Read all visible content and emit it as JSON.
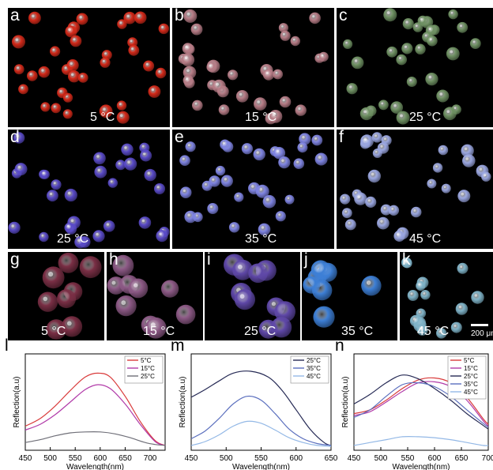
{
  "figure": {
    "photo_rows": [
      {
        "panels": [
          {
            "label": "a",
            "temp": "5 °C",
            "color": "#d42a1a"
          },
          {
            "label": "b",
            "temp": "15 °C",
            "color": "#b67c86"
          },
          {
            "label": "c",
            "temp": "25 °C",
            "color": "#6f9163"
          }
        ]
      },
      {
        "panels": [
          {
            "label": "d",
            "temp": "25 °C",
            "color": "#5a4bc8"
          },
          {
            "label": "e",
            "temp": "35 °C",
            "color": "#7f84e2"
          },
          {
            "label": "f",
            "temp": "45 °C",
            "color": "#9aa6e0"
          }
        ]
      },
      {
        "panels": [
          {
            "label": "g",
            "temp": "5 °C",
            "color": "#7a2f45"
          },
          {
            "label": "h",
            "temp": "15 °C",
            "color": "#8d5a86"
          },
          {
            "label": "i",
            "temp": "25 °C",
            "color": "#5f48a8"
          },
          {
            "label": "j",
            "temp": "35 °C",
            "color": "#3d7fd6"
          },
          {
            "label": "k",
            "temp": "45 °C",
            "color": "#7fb3c8"
          }
        ]
      }
    ],
    "scale_bar": "200 μm"
  },
  "chart_data": [
    {
      "panel_label": "l",
      "type": "line",
      "xlabel": "Wavelength(nm)",
      "ylabel": "Reflection(a.u)",
      "xlim": [
        450,
        730
      ],
      "xticks": [
        450,
        500,
        550,
        600,
        650,
        700
      ],
      "legend": "top-right",
      "series": [
        {
          "name": "5°C",
          "color": "#d93b3b",
          "x": [
            450,
            480,
            510,
            540,
            570,
            595,
            620,
            650,
            680,
            710,
            730
          ],
          "y": [
            0.25,
            0.33,
            0.46,
            0.62,
            0.76,
            0.8,
            0.76,
            0.56,
            0.3,
            0.1,
            0.05
          ]
        },
        {
          "name": "15°C",
          "color": "#b13aa8",
          "x": [
            450,
            480,
            510,
            540,
            570,
            595,
            620,
            650,
            680,
            710,
            730
          ],
          "y": [
            0.21,
            0.27,
            0.37,
            0.5,
            0.63,
            0.68,
            0.64,
            0.48,
            0.27,
            0.09,
            0.05
          ]
        },
        {
          "name": "25°C",
          "color": "#6f6f78",
          "x": [
            450,
            480,
            510,
            540,
            570,
            600,
            630,
            660,
            690,
            710,
            730
          ],
          "y": [
            0.08,
            0.11,
            0.15,
            0.18,
            0.19,
            0.19,
            0.17,
            0.13,
            0.08,
            0.06,
            0.05
          ]
        }
      ]
    },
    {
      "panel_label": "m",
      "type": "line",
      "xlabel": "Wavelength(nm)",
      "ylabel": "Reflection(a.u)",
      "xlim": [
        450,
        650
      ],
      "xticks": [
        450,
        500,
        550,
        600,
        650
      ],
      "legend": "top-right",
      "series": [
        {
          "name": "25°C",
          "color": "#262a55",
          "x": [
            450,
            470,
            490,
            510,
            535,
            560,
            580,
            600,
            620,
            640,
            650
          ],
          "y": [
            0.55,
            0.63,
            0.72,
            0.8,
            0.82,
            0.76,
            0.62,
            0.42,
            0.22,
            0.08,
            0.05
          ]
        },
        {
          "name": "35°C",
          "color": "#5b6fbe",
          "x": [
            450,
            470,
            490,
            510,
            530,
            550,
            570,
            590,
            610,
            630,
            650
          ],
          "y": [
            0.12,
            0.2,
            0.33,
            0.48,
            0.56,
            0.52,
            0.38,
            0.22,
            0.12,
            0.07,
            0.05
          ]
        },
        {
          "name": "45°C",
          "color": "#93b8e6",
          "x": [
            450,
            470,
            490,
            510,
            530,
            550,
            570,
            590,
            610,
            630,
            650
          ],
          "y": [
            0.05,
            0.09,
            0.16,
            0.25,
            0.3,
            0.28,
            0.21,
            0.13,
            0.08,
            0.05,
            0.04
          ]
        }
      ]
    },
    {
      "panel_label": "n",
      "type": "line",
      "xlabel": "Wavelength(nm)",
      "ylabel": "Reflection(a.u)",
      "xlim": [
        450,
        700
      ],
      "xticks": [
        450,
        500,
        550,
        600,
        650,
        700
      ],
      "legend": "top-right",
      "series": [
        {
          "name": "5°C",
          "color": "#d93b3b",
          "x": [
            450,
            480,
            510,
            540,
            570,
            600,
            630,
            660,
            690,
            700
          ],
          "y": [
            0.38,
            0.42,
            0.52,
            0.64,
            0.73,
            0.75,
            0.7,
            0.55,
            0.33,
            0.27
          ]
        },
        {
          "name": "15°C",
          "color": "#b13aa8",
          "x": [
            450,
            480,
            510,
            540,
            570,
            600,
            630,
            660,
            690,
            700
          ],
          "y": [
            0.36,
            0.4,
            0.5,
            0.61,
            0.7,
            0.71,
            0.66,
            0.52,
            0.31,
            0.25
          ]
        },
        {
          "name": "25°C",
          "color": "#262a55",
          "x": [
            450,
            480,
            510,
            540,
            570,
            600,
            630,
            660,
            690,
            700
          ],
          "y": [
            0.48,
            0.58,
            0.7,
            0.78,
            0.74,
            0.64,
            0.52,
            0.38,
            0.26,
            0.22
          ]
        },
        {
          "name": "35°C",
          "color": "#5b6fbe",
          "x": [
            450,
            480,
            510,
            540,
            570,
            600,
            630,
            660,
            690,
            700
          ],
          "y": [
            0.34,
            0.42,
            0.56,
            0.68,
            0.7,
            0.66,
            0.56,
            0.42,
            0.28,
            0.24
          ]
        },
        {
          "name": "45°C",
          "color": "#93b8e6",
          "x": [
            450,
            480,
            510,
            540,
            570,
            600,
            630,
            660,
            690,
            700
          ],
          "y": [
            0.05,
            0.08,
            0.11,
            0.14,
            0.14,
            0.13,
            0.11,
            0.08,
            0.05,
            0.05
          ]
        }
      ]
    }
  ]
}
